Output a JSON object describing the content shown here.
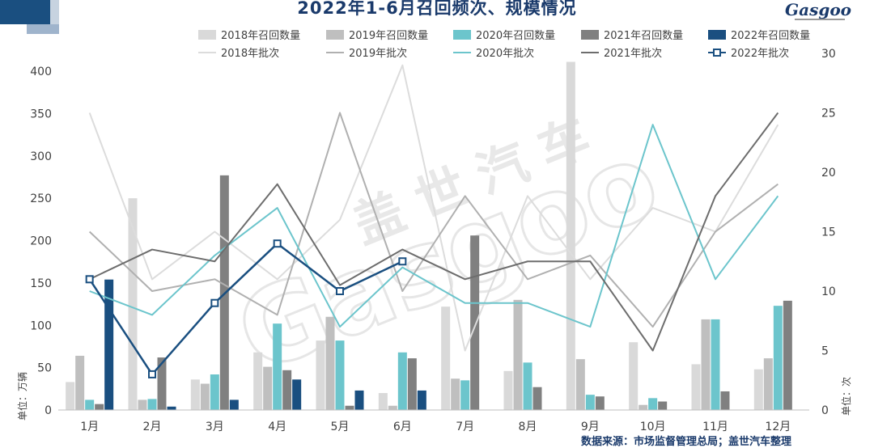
{
  "title": "2022年1-6月召回频次、规模情况",
  "logo_text": "Gasgoo",
  "watermark": "盖世汽车",
  "watermark_en": "Gasgoo",
  "source": "数据来源：市场监督管理总局；盖世汽车整理",
  "chart_data": {
    "type": "bar+line",
    "categories": [
      "1月",
      "2月",
      "3月",
      "4月",
      "5月",
      "6月",
      "7月",
      "8月",
      "9月",
      "10月",
      "11月",
      "12月"
    ],
    "ylabel_left": "单位：万辆",
    "ylabel_right": "单位：次",
    "ylim_left": [
      0,
      400
    ],
    "yticks_left": [
      0,
      50,
      100,
      150,
      200,
      250,
      300,
      350,
      400
    ],
    "ylim_right": [
      0,
      30
    ],
    "yticks_right": [
      0,
      5,
      10,
      15,
      20,
      25,
      30
    ],
    "legend_position": "top",
    "bar_series": [
      {
        "name": "2018年召回数量",
        "color": "#d9d9d9",
        "values": [
          33,
          250,
          36,
          68,
          82,
          20,
          122,
          46,
          411,
          80,
          54,
          48
        ]
      },
      {
        "name": "2019年召回数量",
        "color": "#bfbfbf",
        "values": [
          64,
          12,
          31,
          51,
          110,
          5,
          37,
          130,
          60,
          6,
          107,
          61
        ]
      },
      {
        "name": "2020年召回数量",
        "color": "#6cc5cc",
        "values": [
          12,
          13,
          42,
          102,
          82,
          68,
          35,
          56,
          18,
          14,
          107,
          123
        ]
      },
      {
        "name": "2021年召回数量",
        "color": "#808080",
        "values": [
          7,
          62,
          277,
          47,
          5,
          61,
          206,
          27,
          16,
          10,
          22,
          129
        ]
      },
      {
        "name": "2022年召回数量",
        "color": "#1a4f80",
        "values": [
          154,
          4,
          12,
          36,
          23,
          23,
          null,
          null,
          null,
          null,
          null,
          null
        ]
      }
    ],
    "line_series": [
      {
        "name": "2018年批次",
        "color": "#dcdcdc",
        "values": [
          25,
          11,
          15,
          11,
          16,
          29,
          5,
          18,
          11,
          17,
          15,
          24
        ]
      },
      {
        "name": "2019年批次",
        "color": "#b0b0b0",
        "values": [
          15,
          10,
          11,
          8,
          25,
          10,
          18,
          11,
          13,
          7,
          15,
          19
        ]
      },
      {
        "name": "2020年批次",
        "color": "#6cc5cc",
        "values": [
          10,
          8,
          13,
          17,
          7,
          12,
          9,
          9,
          7,
          24,
          11,
          18
        ]
      },
      {
        "name": "2021年批次",
        "color": "#6d6d6d",
        "values": [
          11,
          13.5,
          12.5,
          19,
          10.5,
          13.5,
          11,
          12.5,
          12.5,
          5,
          18,
          25
        ]
      },
      {
        "name": "2022年批次",
        "color": "#1a4f80",
        "marker": "square",
        "values": [
          11,
          3,
          9,
          14,
          10,
          12.5,
          null,
          null,
          null,
          null,
          null,
          null
        ]
      }
    ]
  }
}
